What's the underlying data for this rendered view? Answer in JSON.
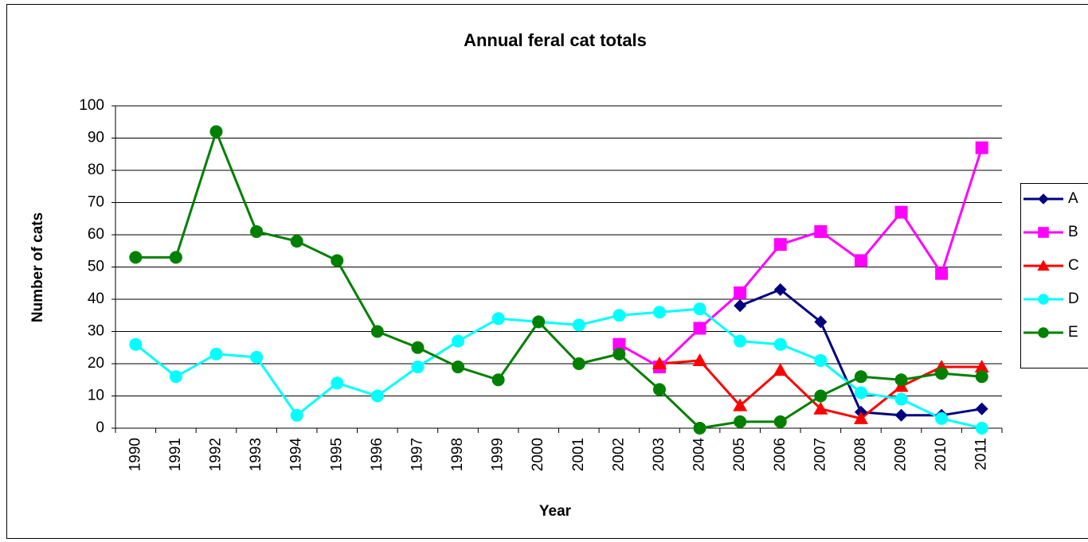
{
  "chart_data": {
    "type": "line",
    "title": "Annual feral cat totals",
    "xlabel": "Year",
    "ylabel": "Number of cats",
    "categories": [
      "1990",
      "1991",
      "1992",
      "1993",
      "1994",
      "1995",
      "1996",
      "1997",
      "1998",
      "1999",
      "2000",
      "2001",
      "2002",
      "2003",
      "2004",
      "2005",
      "2006",
      "2007",
      "2008",
      "2009",
      "2010",
      "2011"
    ],
    "series": [
      {
        "name": "A",
        "color": "#000080",
        "marker": "diamond",
        "values": [
          null,
          null,
          null,
          null,
          null,
          null,
          null,
          null,
          null,
          null,
          null,
          null,
          null,
          null,
          null,
          38,
          43,
          33,
          5,
          4,
          4,
          6
        ]
      },
      {
        "name": "B",
        "color": "#ff00ff",
        "marker": "square",
        "values": [
          null,
          null,
          null,
          null,
          null,
          null,
          null,
          null,
          null,
          null,
          null,
          null,
          26,
          19,
          31,
          42,
          57,
          61,
          52,
          67,
          48,
          87
        ]
      },
      {
        "name": "C",
        "color": "#ff0000",
        "marker": "triangle",
        "values": [
          null,
          null,
          null,
          null,
          null,
          null,
          null,
          null,
          null,
          null,
          null,
          null,
          null,
          20,
          21,
          7,
          18,
          6,
          3,
          13,
          19,
          19
        ]
      },
      {
        "name": "D",
        "color": "#00ffff",
        "marker": "circle",
        "values": [
          26,
          16,
          23,
          22,
          4,
          14,
          10,
          19,
          27,
          34,
          33,
          32,
          35,
          36,
          37,
          27,
          26,
          21,
          11,
          9,
          3,
          0
        ]
      },
      {
        "name": "E",
        "color": "#008000",
        "marker": "circle",
        "values": [
          53,
          53,
          92,
          61,
          58,
          52,
          30,
          25,
          19,
          15,
          33,
          20,
          23,
          12,
          0,
          2,
          2,
          10,
          16,
          15,
          17,
          16
        ]
      }
    ],
    "ylim": [
      0,
      100
    ],
    "yticks": [
      0,
      10,
      20,
      30,
      40,
      50,
      60,
      70,
      80,
      90,
      100
    ],
    "grid": true,
    "legend": "right"
  }
}
